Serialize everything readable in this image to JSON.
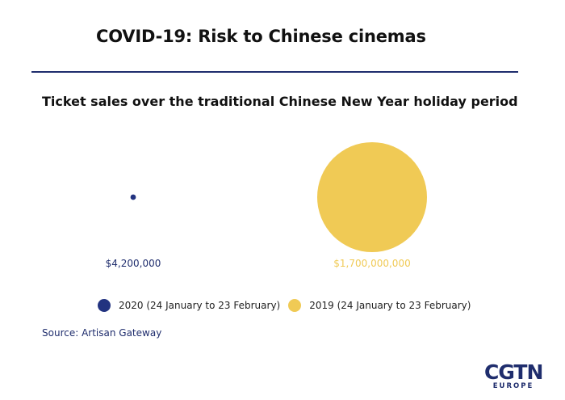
{
  "header": {
    "title": "COVID-19: Risk to Chinese cinemas"
  },
  "footer": {
    "source": "Source: Artisan Gateway",
    "logo_main": "CGTN",
    "logo_sub": "EUROPE"
  },
  "colors": {
    "accent": "#1f2d6d",
    "series_2020": "#223380",
    "series_2019": "#f0ca55"
  },
  "chart_data": {
    "type": "bubble",
    "title": "Ticket sales over the traditional Chinese New Year holiday period",
    "series": [
      {
        "name": "2020 (24 January to 23 February)",
        "value": 4200000,
        "value_label": "$4,200,000",
        "color": "#223380"
      },
      {
        "name": "2019 (24 January to 23 February)",
        "value": 1700000000,
        "value_label": "$1,700,000,000",
        "color": "#f0ca55"
      }
    ],
    "size_encoding": "area proportional to value",
    "legend_position": "bottom"
  }
}
